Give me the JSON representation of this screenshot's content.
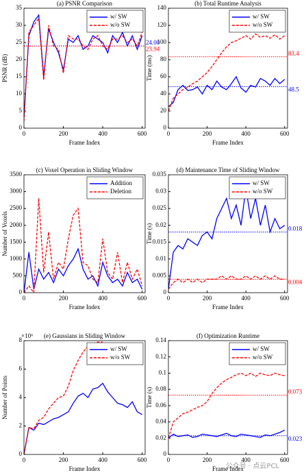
{
  "chart_data": [
    {
      "type": "line",
      "title": "(a) PSNR Comparison",
      "xlabel": "Frame Index",
      "ylabel": "PSNR (dB)",
      "grid": false,
      "legend": "top-right",
      "xlim": [
        0,
        615
      ],
      "xticks": [
        0,
        200,
        400,
        600
      ],
      "ylim": [
        0,
        35
      ],
      "yticks": [
        0,
        5,
        10,
        15,
        20,
        25,
        30,
        35
      ],
      "x": [
        0,
        25,
        50,
        75,
        100,
        125,
        150,
        175,
        200,
        225,
        250,
        275,
        300,
        325,
        350,
        375,
        400,
        425,
        450,
        475,
        500,
        525,
        550,
        575,
        600
      ],
      "series": [
        {
          "name": "w/ SW",
          "color": "#0000ff",
          "dash": false,
          "values": [
            3,
            27,
            31,
            33,
            15,
            29,
            25,
            22,
            17,
            26,
            25,
            27,
            23,
            24,
            27,
            26,
            25,
            22,
            27,
            25,
            28,
            24,
            27,
            23,
            27
          ]
        },
        {
          "name": "w/o SW",
          "color": "#ff0000",
          "dash": true,
          "values": [
            2,
            28,
            30,
            32,
            14,
            30,
            24,
            23,
            16,
            27,
            26,
            26,
            24,
            23,
            26,
            27,
            24,
            23,
            26,
            26,
            27,
            25,
            26,
            24,
            28
          ]
        }
      ],
      "hlines": [
        {
          "value": 24,
          "label": "24.00",
          "color": "#0000ff"
        },
        {
          "value": 23.94,
          "label": "23.94",
          "color": "#ff0000"
        }
      ]
    },
    {
      "type": "line",
      "title": "(b) Total Runtime Analysis",
      "xlabel": "Frame Index",
      "ylabel": "Time (ms)",
      "grid": false,
      "legend": "top-right",
      "xlim": [
        0,
        615
      ],
      "xticks": [
        0,
        200,
        400,
        600
      ],
      "ylim": [
        0,
        140
      ],
      "yticks": [
        0,
        20,
        40,
        60,
        80,
        100,
        120,
        140
      ],
      "x": [
        0,
        25,
        50,
        75,
        100,
        125,
        150,
        175,
        200,
        225,
        250,
        275,
        300,
        325,
        350,
        375,
        400,
        425,
        450,
        475,
        500,
        525,
        550,
        575,
        600
      ],
      "series": [
        {
          "name": "w/ SW",
          "color": "#0000ff",
          "dash": false,
          "values": [
            25,
            30,
            45,
            50,
            44,
            45,
            48,
            40,
            50,
            45,
            55,
            48,
            45,
            52,
            60,
            47,
            42,
            50,
            48,
            58,
            55,
            50,
            58,
            52,
            57
          ]
        },
        {
          "name": "w/o SW",
          "color": "#ff0000",
          "dash": true,
          "values": [
            20,
            35,
            40,
            45,
            48,
            52,
            55,
            60,
            65,
            72,
            80,
            88,
            95,
            100,
            102,
            105,
            108,
            104,
            110,
            106,
            108,
            105,
            109,
            104,
            108
          ]
        }
      ],
      "hlines": [
        {
          "value": 83.4,
          "label": "83.4",
          "color": "#ff0000"
        },
        {
          "value": 48.5,
          "label": "48.5",
          "color": "#0000ff"
        }
      ]
    },
    {
      "type": "line",
      "title": "(c) Voxel Operation in Sliding Window",
      "xlabel": "Frame Index",
      "ylabel": "Number of Voxels",
      "grid": false,
      "legend": "top-right",
      "xlim": [
        0,
        615
      ],
      "xticks": [
        0,
        200,
        400,
        600
      ],
      "ylim": [
        0,
        3500
      ],
      "yticks": [
        0,
        500,
        1000,
        1500,
        2000,
        2500,
        3000,
        3500
      ],
      "x": [
        0,
        25,
        50,
        75,
        100,
        125,
        150,
        175,
        200,
        225,
        250,
        275,
        300,
        325,
        350,
        375,
        400,
        425,
        450,
        475,
        500,
        525,
        550,
        575,
        600
      ],
      "series": [
        {
          "name": "Addition",
          "color": "#0000ff",
          "dash": false,
          "values": [
            0,
            1200,
            100,
            700,
            400,
            600,
            300,
            700,
            500,
            800,
            1000,
            1300,
            700,
            400,
            500,
            200,
            900,
            500,
            300,
            400,
            200,
            600,
            300,
            400,
            100
          ]
        },
        {
          "name": "Deletion",
          "color": "#ff0000",
          "dash": true,
          "values": [
            0,
            200,
            0,
            2800,
            600,
            1800,
            400,
            900,
            700,
            1600,
            2300,
            2500,
            900,
            800,
            400,
            300,
            1600,
            600,
            400,
            1200,
            300,
            900,
            400,
            700,
            200
          ]
        }
      ],
      "hlines": []
    },
    {
      "type": "line",
      "title": "(d) Maintenance Time of Sliding Window",
      "xlabel": "Frame Index",
      "ylabel": "Time (s)",
      "grid": false,
      "legend": "top-right",
      "xlim": [
        0,
        615
      ],
      "xticks": [
        0,
        200,
        400,
        600
      ],
      "ylim": [
        0,
        0.035
      ],
      "yticks": [
        0,
        0.005,
        0.01,
        0.015,
        0.02,
        0.025,
        0.03,
        0.035
      ],
      "x": [
        0,
        25,
        50,
        75,
        100,
        125,
        150,
        175,
        200,
        225,
        250,
        275,
        300,
        325,
        350,
        375,
        400,
        425,
        450,
        475,
        500,
        525,
        550,
        575,
        600
      ],
      "series": [
        {
          "name": "w/ SW",
          "color": "#0000ff",
          "dash": false,
          "values": [
            0.001,
            0.012,
            0.014,
            0.013,
            0.016,
            0.015,
            0.014,
            0.017,
            0.018,
            0.016,
            0.022,
            0.025,
            0.028,
            0.022,
            0.026,
            0.02,
            0.031,
            0.022,
            0.028,
            0.02,
            0.026,
            0.018,
            0.022,
            0.019,
            0.02
          ]
        },
        {
          "name": "w/o SW",
          "color": "#ff0000",
          "dash": true,
          "values": [
            0.001,
            0.003,
            0.004,
            0.003,
            0.004,
            0.003,
            0.004,
            0.003,
            0.004,
            0.004,
            0.004,
            0.005,
            0.004,
            0.005,
            0.004,
            0.004,
            0.005,
            0.004,
            0.005,
            0.004,
            0.005,
            0.004,
            0.005,
            0.004,
            0.004
          ]
        }
      ],
      "hlines": [
        {
          "value": 0.018,
          "label": "0.018",
          "color": "#0000ff"
        },
        {
          "value": 0.004,
          "label": "0.004",
          "color": "#ff0000"
        }
      ]
    },
    {
      "type": "line",
      "title": "(e) Gaussians in Sliding Window",
      "xlabel": "Frame Index",
      "ylabel": "Number of Points",
      "y_multiplier": "×10⁶",
      "grid": false,
      "legend": "top-right",
      "xlim": [
        0,
        615
      ],
      "xticks": [
        0,
        200,
        400,
        600
      ],
      "ylim": [
        0,
        8
      ],
      "yticks": [
        0,
        2,
        4,
        6,
        8
      ],
      "x": [
        0,
        25,
        50,
        75,
        100,
        125,
        150,
        175,
        200,
        225,
        250,
        275,
        300,
        325,
        350,
        375,
        400,
        425,
        450,
        475,
        500,
        525,
        550,
        575,
        600
      ],
      "series": [
        {
          "name": "w/ SW",
          "color": "#0000ff",
          "dash": false,
          "values": [
            0,
            1.9,
            1.7,
            2.2,
            2.1,
            2.3,
            2.5,
            2.6,
            2.8,
            3.0,
            3.6,
            4.1,
            4.3,
            4.0,
            4.6,
            4.7,
            5.0,
            4.4,
            4.0,
            3.6,
            3.5,
            3.3,
            3.7,
            3.0,
            2.8
          ]
        },
        {
          "name": "w/o SW",
          "color": "#ff0000",
          "dash": true,
          "values": [
            0,
            1.9,
            1.8,
            2.4,
            2.6,
            3.2,
            3.6,
            4.0,
            4.1,
            4.8,
            5.9,
            6.6,
            7.2,
            7.6,
            7.8,
            7.9,
            7.9,
            null,
            null,
            null,
            null,
            null,
            null,
            null,
            null
          ]
        }
      ],
      "hlines": []
    },
    {
      "type": "line",
      "title": "(f) Optimization Runtime",
      "xlabel": "Frame Index",
      "ylabel": "Time (s)",
      "grid": false,
      "legend": "top-right",
      "xlim": [
        0,
        615
      ],
      "xticks": [
        0,
        200,
        400,
        600
      ],
      "ylim": [
        0,
        0.14
      ],
      "yticks": [
        0,
        0.02,
        0.04,
        0.06,
        0.08,
        0.1,
        0.12,
        0.14
      ],
      "x": [
        0,
        25,
        50,
        75,
        100,
        125,
        150,
        175,
        200,
        225,
        250,
        275,
        300,
        325,
        350,
        375,
        400,
        425,
        450,
        475,
        500,
        525,
        550,
        575,
        600
      ],
      "series": [
        {
          "name": "w/ SW",
          "color": "#0000ff",
          "dash": false,
          "values": [
            0.02,
            0.025,
            0.022,
            0.023,
            0.024,
            0.021,
            0.022,
            0.025,
            0.024,
            0.023,
            0.022,
            0.024,
            0.026,
            0.023,
            0.022,
            0.025,
            0.024,
            0.023,
            0.022,
            0.021,
            0.024,
            0.023,
            0.025,
            0.027,
            0.03
          ]
        },
        {
          "name": "w/o SW",
          "color": "#ff0000",
          "dash": true,
          "values": [
            0.02,
            0.04,
            0.045,
            0.05,
            0.052,
            0.055,
            0.058,
            0.06,
            0.065,
            0.075,
            0.082,
            0.088,
            0.092,
            0.095,
            0.098,
            0.1,
            0.097,
            0.1,
            0.096,
            0.1,
            0.098,
            0.097,
            0.1,
            0.098,
            0.097
          ]
        }
      ],
      "hlines": [
        {
          "value": 0.073,
          "label": "0.073",
          "color": "#ff0000"
        },
        {
          "value": 0.023,
          "label": "0.023",
          "color": "#0000ff"
        }
      ]
    }
  ],
  "watermark": "公众号 · 点云PCL"
}
